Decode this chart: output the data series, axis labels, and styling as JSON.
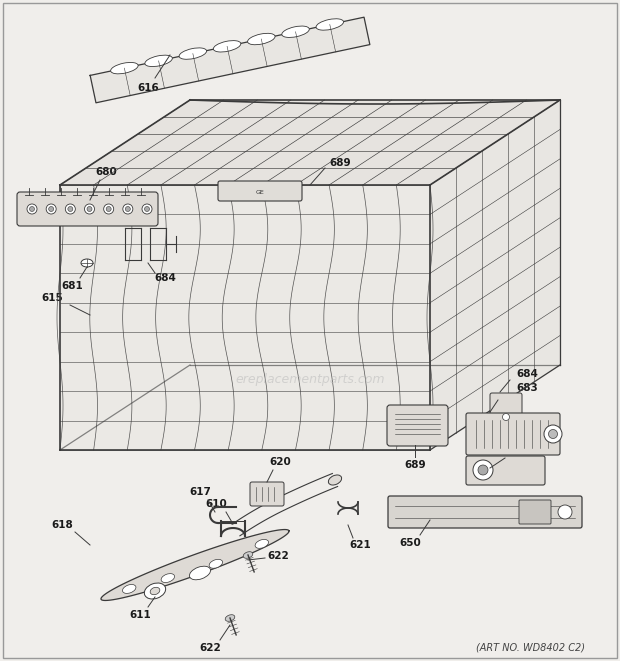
{
  "bg_color": "#f0eeeb",
  "line_color": "#3a3a3a",
  "label_color": "#1a1a1a",
  "art_no": "(ART NO. WD8402 C2)",
  "watermark": "ereplacementparts.com",
  "figsize": [
    6.2,
    6.61
  ],
  "dpi": 100
}
